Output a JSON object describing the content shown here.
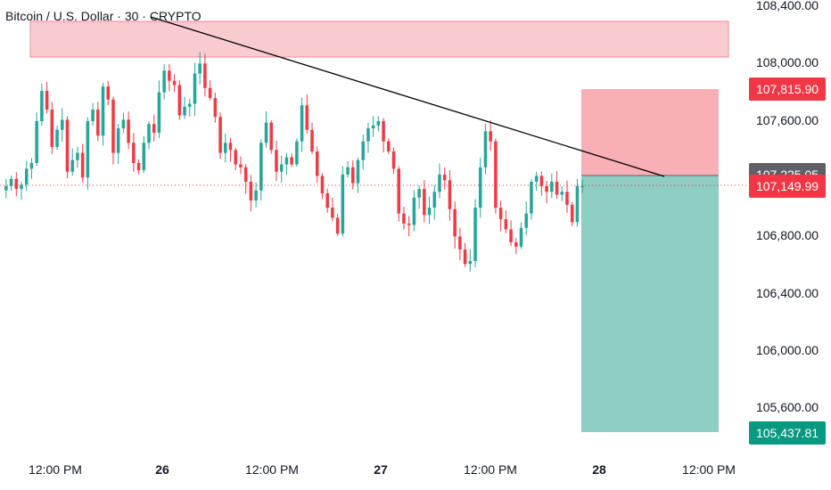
{
  "title": "Bitcoin / U.S. Dollar · 30 · CRYPTO",
  "colors": {
    "up": "#26a69a",
    "down": "#ef3b45",
    "resistance_zone": "#f7a9ae",
    "stop_zone": "#f47b86",
    "target_zone": "#1c9c86",
    "trendline": "#000000",
    "price_line": "#ef3b45",
    "badge_red": "#f23645",
    "badge_green": "#089981",
    "badge_gray": "#5d6066"
  },
  "badges": {
    "stop": "107,815.90",
    "current": "107,149.99",
    "hidden": "107,225.05",
    "target": "105,437.81"
  },
  "chart_data": {
    "type": "candlestick",
    "title": "Bitcoin / U.S. Dollar · 30 · CRYPTO",
    "symbol": "BTCUSD",
    "interval": "30",
    "y_ticks": [
      "108,400.00",
      "108,000.00",
      "107,600.00",
      "106,800.00",
      "106,400.00",
      "106,000.00",
      "105,600.00"
    ],
    "x_ticks": [
      {
        "label": "12:00 PM",
        "day": false
      },
      {
        "label": "26",
        "day": true
      },
      {
        "label": "12:00 PM",
        "day": false
      },
      {
        "label": "27",
        "day": true
      },
      {
        "label": "12:00 PM",
        "day": false
      },
      {
        "label": "28",
        "day": true
      },
      {
        "label": "12:00 PM",
        "day": false
      }
    ],
    "ylim": [
      105350,
      108400
    ],
    "grid": false,
    "current_price": 107149.99,
    "resistance_zone": {
      "low": 108040,
      "high": 108290
    },
    "trendline": {
      "from": 108320,
      "to": 107150
    },
    "position": {
      "side": "short",
      "entry": 107225.05,
      "stop": 107815.9,
      "target": 105437.81
    },
    "candle_series": [
      107150,
      107200,
      107130,
      107160,
      107270,
      107310,
      107600,
      107810,
      107680,
      107420,
      107540,
      107610,
      107250,
      107330,
      107380,
      107210,
      107600,
      107680,
      107500,
      107840,
      107750,
      107380,
      107550,
      107610,
      107450,
      107310,
      107260,
      107450,
      107580,
      107520,
      107800,
      107950,
      107880,
      107850,
      107640,
      107700,
      107720,
      107930,
      108000,
      107830,
      107760,
      107630,
      107380,
      107450,
      107400,
      107300,
      107280,
      107180,
      107050,
      107120,
      107450,
      107590,
      107400,
      107250,
      107300,
      107350,
      107300,
      107460,
      107710,
      107540,
      107390,
      107220,
      107100,
      107000,
      106930,
      106820,
      107230,
      107280,
      107170,
      107330,
      107460,
      107550,
      107570,
      107600,
      107460,
      107390,
      107270,
      106960,
      106890,
      106880,
      107070,
      107130,
      106950,
      107000,
      107110,
      107230,
      107190,
      106990,
      106800,
      106710,
      106610,
      106630,
      107000,
      107280,
      107530,
      107460,
      107000,
      106920,
      106850,
      106760,
      106730,
      106860,
      106960,
      107180,
      107220,
      107150,
      107110,
      107180,
      107090,
      107110,
      107020,
      106900,
      107150,
      107150
    ]
  }
}
